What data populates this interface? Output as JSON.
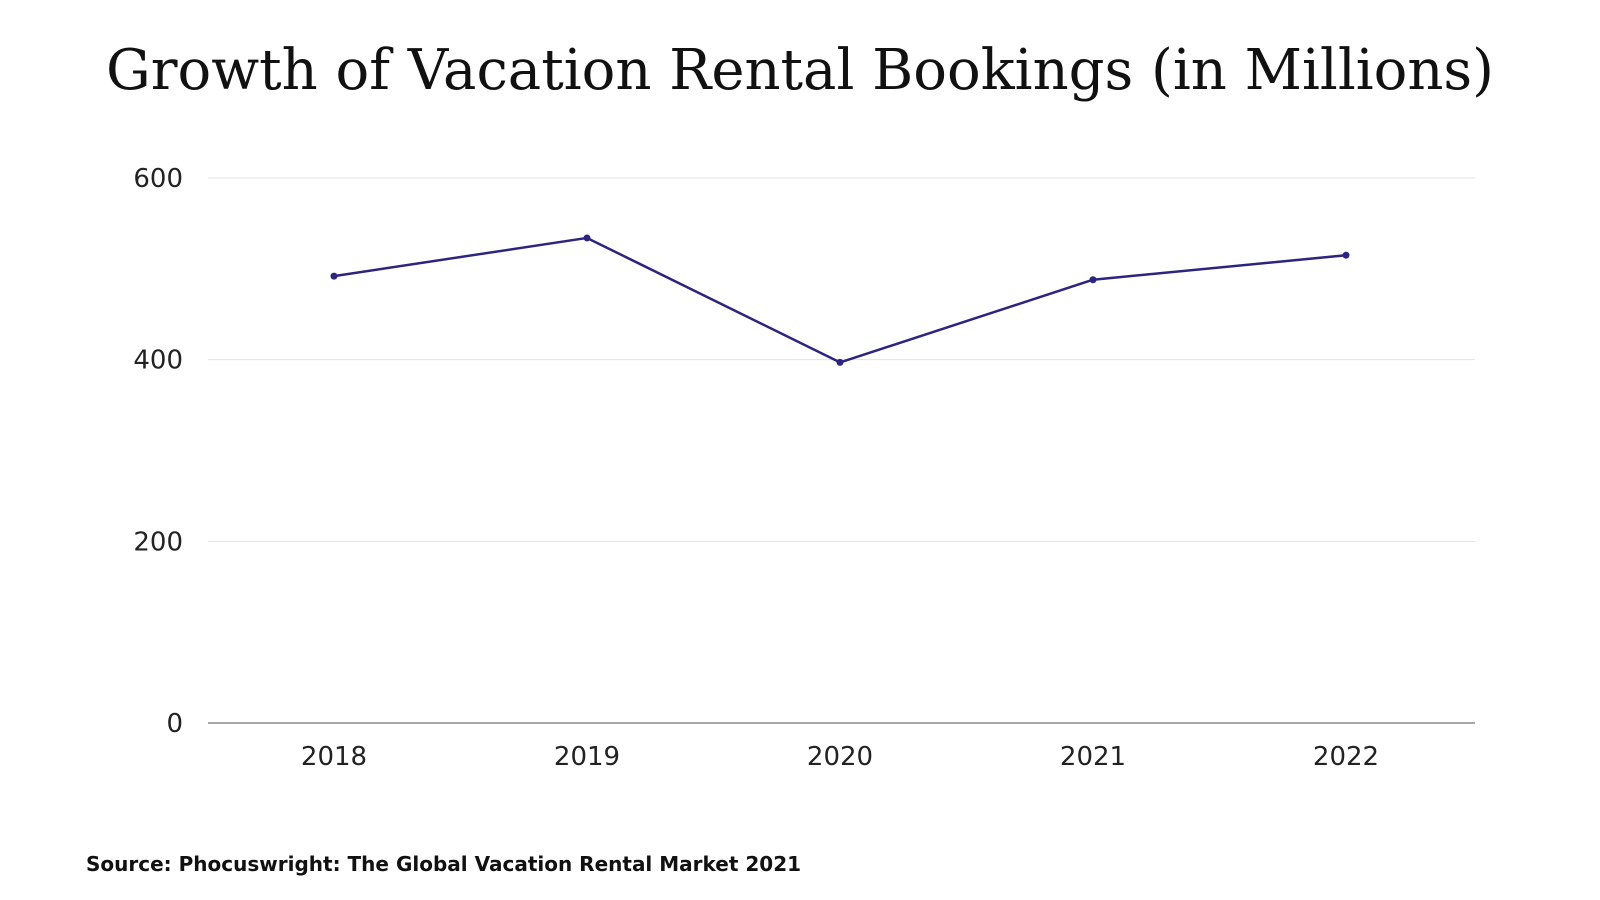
{
  "chart_data": {
    "type": "line",
    "title": "Growth of Vacation Rental Bookings (in Millions)",
    "categories": [
      "2018",
      "2019",
      "2020",
      "2021",
      "2022"
    ],
    "series": [
      {
        "values": [
          492,
          534,
          397,
          488,
          515
        ]
      }
    ],
    "ylim": [
      0,
      600
    ],
    "yticks": [
      "0",
      "200",
      "400",
      "600"
    ],
    "grid": true,
    "legend": "none",
    "line_color": "#2b2580",
    "grid_color": "#e3e3e3",
    "baseline_color": "#8a8a8a"
  },
  "source": "Source: Phocuswright: The Global Vacation Rental Market 2021"
}
